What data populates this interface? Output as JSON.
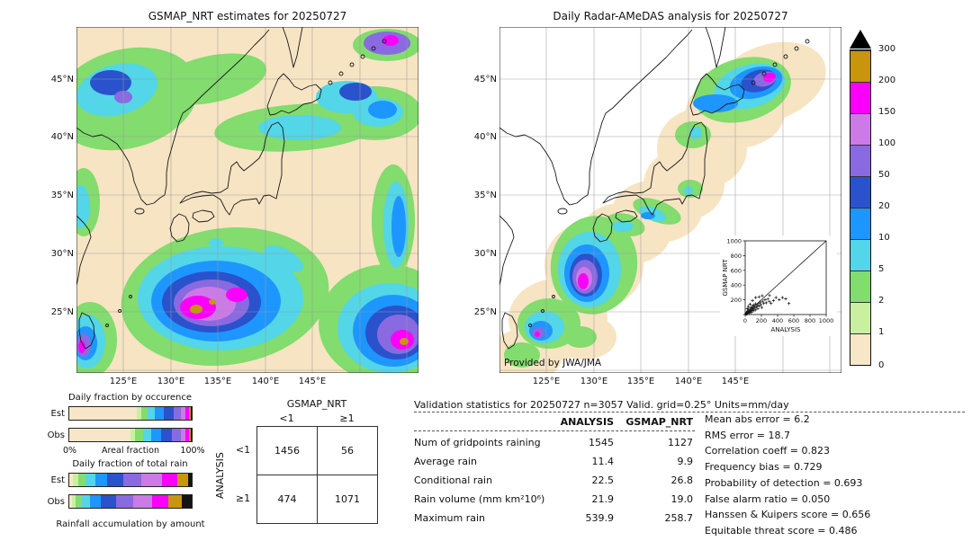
{
  "left_map": {
    "title": "GSMAP_NRT estimates for 20250727"
  },
  "right_map": {
    "title": "Daily Radar-AMeDAS analysis for 20250727",
    "credit": "Provided by JWA/JMA"
  },
  "maps": {
    "lat_ticks": [
      "45°N",
      "40°N",
      "35°N",
      "30°N",
      "25°N"
    ],
    "lon_ticks": [
      "125°E",
      "130°E",
      "135°E",
      "140°E",
      "145°E"
    ]
  },
  "colorbar": {
    "labels": [
      "300",
      "200",
      "150",
      "100",
      "50",
      "20",
      "10",
      "5",
      "2",
      "1",
      "0"
    ],
    "colors": [
      "#c8960c",
      "#fa00fa",
      "#cc7ae6",
      "#8a6ae0",
      "#2a52cc",
      "#1e96ff",
      "#52d6e8",
      "#82dc6e",
      "#c8f0a0",
      "#f8e6c8"
    ],
    "overflow_color": "#000000",
    "units": "mm/day"
  },
  "inset": {
    "ylabel": "GSMAP NRT",
    "xlabel": "ANALYSIS",
    "x_ticks": [
      "0",
      "200",
      "400",
      "600",
      "800",
      "1000"
    ],
    "y_ticks": [
      "1000",
      "800",
      "600",
      "400",
      "200"
    ]
  },
  "fractions": {
    "occurrence_title": "Daily fraction by occurence",
    "total_title": "Daily fraction of total rain",
    "est_label": "Est",
    "obs_label": "Obs",
    "est_label2": "Est",
    "obs_label2": "Obs",
    "pct_min": "0%",
    "areal_label": "Areal fraction",
    "pct_max": "100%",
    "accum_label": "Rainfall accumulation by amount",
    "occ_est": [
      {
        "c": "#f8e6c8",
        "w": 55
      },
      {
        "c": "#c8f0a0",
        "w": 4
      },
      {
        "c": "#82dc6e",
        "w": 5
      },
      {
        "c": "#52d6e8",
        "w": 6
      },
      {
        "c": "#1e96ff",
        "w": 7
      },
      {
        "c": "#2a52cc",
        "w": 8
      },
      {
        "c": "#8a6ae0",
        "w": 6
      },
      {
        "c": "#cc7ae6",
        "w": 4
      },
      {
        "c": "#fa00fa",
        "w": 2.5
      },
      {
        "c": "#c8960c",
        "w": 1.5
      },
      {
        "c": "#141414",
        "w": 1
      }
    ],
    "occ_obs": [
      {
        "c": "#f8e6c8",
        "w": 50
      },
      {
        "c": "#c8f0a0",
        "w": 4
      },
      {
        "c": "#82dc6e",
        "w": 6
      },
      {
        "c": "#52d6e8",
        "w": 7
      },
      {
        "c": "#1e96ff",
        "w": 8
      },
      {
        "c": "#2a52cc",
        "w": 9
      },
      {
        "c": "#8a6ae0",
        "w": 7
      },
      {
        "c": "#cc7ae6",
        "w": 4
      },
      {
        "c": "#fa00fa",
        "w": 2.5
      },
      {
        "c": "#c8960c",
        "w": 1.5
      },
      {
        "c": "#141414",
        "w": 1
      }
    ],
    "tot_est": [
      {
        "c": "#f8e6c8",
        "w": 3
      },
      {
        "c": "#c8f0a0",
        "w": 4
      },
      {
        "c": "#82dc6e",
        "w": 6
      },
      {
        "c": "#52d6e8",
        "w": 8
      },
      {
        "c": "#1e96ff",
        "w": 10
      },
      {
        "c": "#2a52cc",
        "w": 13
      },
      {
        "c": "#8a6ae0",
        "w": 15
      },
      {
        "c": "#cc7ae6",
        "w": 17
      },
      {
        "c": "#fa00fa",
        "w": 12
      },
      {
        "c": "#c8960c",
        "w": 9
      },
      {
        "c": "#141414",
        "w": 3
      }
    ],
    "tot_obs": [
      {
        "c": "#f8e6c8",
        "w": 2
      },
      {
        "c": "#c8f0a0",
        "w": 3
      },
      {
        "c": "#82dc6e",
        "w": 5
      },
      {
        "c": "#52d6e8",
        "w": 7
      },
      {
        "c": "#1e96ff",
        "w": 9
      },
      {
        "c": "#2a52cc",
        "w": 12
      },
      {
        "c": "#8a6ae0",
        "w": 14
      },
      {
        "c": "#cc7ae6",
        "w": 16
      },
      {
        "c": "#fa00fa",
        "w": 13
      },
      {
        "c": "#c8960c",
        "w": 11
      },
      {
        "c": "#141414",
        "w": 8
      }
    ]
  },
  "contingency": {
    "title": "GSMAP_NRT",
    "col_headers": [
      "<1",
      "≥1"
    ],
    "row_axis": "ANALYSIS",
    "row_headers": [
      "<1",
      "≥1"
    ],
    "cells": [
      [
        "1456",
        "56"
      ],
      [
        "474",
        "1071"
      ]
    ]
  },
  "stats": {
    "title": "Validation statistics for 20250727  n=3057 Valid. grid=0.25° Units=mm/day",
    "col_headers": [
      "ANALYSIS",
      "GSMAP_NRT"
    ],
    "rows": [
      {
        "label": "Num of gridpoints raining",
        "analysis": "1545",
        "gsmap": "1127"
      },
      {
        "label": "Average rain",
        "analysis": "11.4",
        "gsmap": "9.9"
      },
      {
        "label": "Conditional rain",
        "analysis": "22.5",
        "gsmap": "26.8"
      },
      {
        "label": "Rain volume (mm km²10⁶)",
        "analysis": "21.9",
        "gsmap": "19.0"
      },
      {
        "label": "Maximum rain",
        "analysis": "539.9",
        "gsmap": "258.7"
      }
    ]
  },
  "metrics": {
    "lines": [
      "Mean abs error =  6.2",
      "RMS error =  18.7",
      "Correlation coeff =  0.823",
      "Frequency bias =  0.729",
      "Probability of detection =  0.693",
      "False alarm ratio =  0.050",
      "Hanssen & Kuipers score =  0.656",
      "Equitable threat score =  0.486"
    ]
  },
  "chart_data": [
    {
      "type": "scatter",
      "title": "GSMAP_NRT vs Radar-AMeDAS analysis (mm/day)",
      "xlabel": "ANALYSIS",
      "ylabel": "GSMAP NRT",
      "xlim": [
        0,
        1000
      ],
      "ylim": [
        0,
        1000
      ],
      "diagonal": true,
      "points": [
        [
          8,
          5
        ],
        [
          12,
          10
        ],
        [
          15,
          22
        ],
        [
          20,
          8
        ],
        [
          22,
          30
        ],
        [
          28,
          18
        ],
        [
          30,
          45
        ],
        [
          35,
          25
        ],
        [
          40,
          60
        ],
        [
          45,
          35
        ],
        [
          50,
          20
        ],
        [
          55,
          70
        ],
        [
          60,
          42
        ],
        [
          65,
          88
        ],
        [
          70,
          55
        ],
        [
          75,
          30
        ],
        [
          80,
          95
        ],
        [
          85,
          60
        ],
        [
          90,
          120
        ],
        [
          95,
          75
        ],
        [
          100,
          50
        ],
        [
          105,
          130
        ],
        [
          110,
          85
        ],
        [
          120,
          100
        ],
        [
          125,
          62
        ],
        [
          130,
          145
        ],
        [
          140,
          105
        ],
        [
          150,
          125
        ],
        [
          155,
          80
        ],
        [
          165,
          150
        ],
        [
          175,
          115
        ],
        [
          185,
          170
        ],
        [
          195,
          135
        ],
        [
          205,
          95
        ],
        [
          215,
          180
        ],
        [
          230,
          150
        ],
        [
          245,
          200
        ],
        [
          260,
          160
        ],
        [
          280,
          210
        ],
        [
          300,
          175
        ],
        [
          320,
          150
        ],
        [
          350,
          190
        ],
        [
          380,
          230
        ],
        [
          420,
          200
        ],
        [
          460,
          230
        ],
        [
          500,
          215
        ],
        [
          540,
          150
        ],
        [
          60,
          140
        ],
        [
          90,
          190
        ],
        [
          130,
          230
        ],
        [
          40,
          110
        ],
        [
          25,
          80
        ],
        [
          170,
          240
        ],
        [
          210,
          255
        ],
        [
          300,
          259
        ]
      ]
    },
    {
      "type": "table",
      "title": "Contingency table (threshold 1 mm/day, n=3057)",
      "row_axis": "ANALYSIS",
      "col_axis": "GSMAP_NRT",
      "columns": [
        "<1",
        "≥1"
      ],
      "rows": [
        "<1",
        "≥1"
      ],
      "values": [
        [
          1456,
          56
        ],
        [
          474,
          1071
        ]
      ]
    },
    {
      "type": "table",
      "title": "Validation statistics for 20250727  n=3057 Valid. grid=0.25° Units=mm/day",
      "columns": [
        "ANALYSIS",
        "GSMAP_NRT"
      ],
      "rows": [
        [
          "Num of gridpoints raining",
          1545,
          1127
        ],
        [
          "Average rain",
          11.4,
          9.9
        ],
        [
          "Conditional rain",
          22.5,
          26.8
        ],
        [
          "Rain volume (mm km²10⁶)",
          21.9,
          19.0
        ],
        [
          "Maximum rain",
          539.9,
          258.7
        ]
      ],
      "scores": {
        "mean_abs_error": 6.2,
        "rms_error": 18.7,
        "correlation_coeff": 0.823,
        "frequency_bias": 0.729,
        "probability_of_detection": 0.693,
        "false_alarm_ratio": 0.05,
        "hanssen_kuipers_score": 0.656,
        "equitable_threat_score": 0.486
      }
    },
    {
      "type": "heatmap",
      "title": "GSMAP_NRT estimates / Daily Radar-AMeDAS analysis maps for 20250727",
      "units": "mm/day",
      "levels": [
        0,
        1,
        2,
        5,
        10,
        20,
        50,
        100,
        150,
        200,
        300
      ],
      "lat_ticks": [
        "45°N",
        "40°N",
        "35°N",
        "30°N",
        "25°N"
      ],
      "lon_ticks": [
        "125°E",
        "130°E",
        "135°E",
        "140°E",
        "145°E"
      ]
    },
    {
      "type": "bar",
      "subtype": "stacked-horizontal",
      "title": "Daily fraction by occurence / Daily fraction of total rain",
      "bins_mm_per_day": [
        0,
        1,
        2,
        5,
        10,
        20,
        50,
        100,
        150,
        200,
        300
      ],
      "series": [
        {
          "name": "Occurrence Est",
          "widths_pct": [
            55,
            4,
            5,
            6,
            7,
            8,
            6,
            4,
            2.5,
            1.5,
            1
          ]
        },
        {
          "name": "Occurrence Obs",
          "widths_pct": [
            50,
            4,
            6,
            7,
            8,
            9,
            7,
            4,
            2.5,
            1.5,
            1
          ]
        },
        {
          "name": "Total rain Est",
          "widths_pct": [
            3,
            4,
            6,
            8,
            10,
            13,
            15,
            17,
            12,
            9,
            3
          ]
        },
        {
          "name": "Total rain Obs",
          "widths_pct": [
            2,
            3,
            5,
            7,
            9,
            12,
            14,
            16,
            13,
            11,
            8
          ]
        }
      ]
    }
  ]
}
